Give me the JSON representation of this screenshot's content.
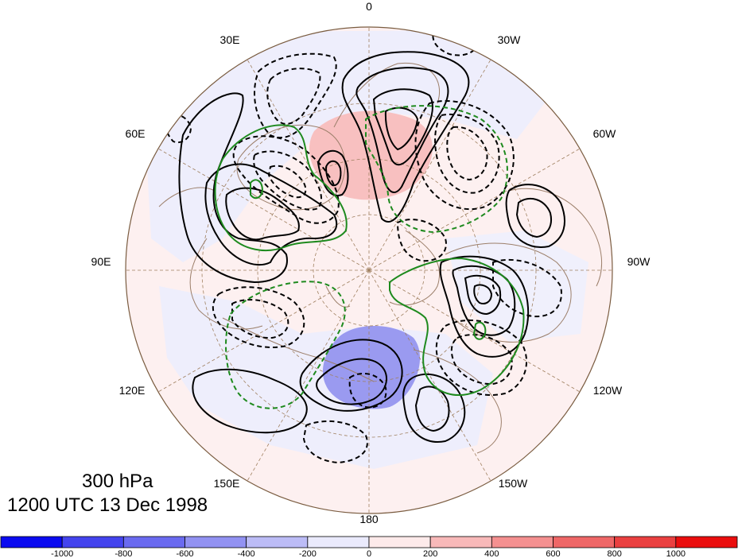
{
  "caption": {
    "level": "300 hPa",
    "time": "1200 UTC 13 Dec 1998"
  },
  "longitude_labels": [
    {
      "text": "0",
      "lon": 0
    },
    {
      "text": "30W",
      "lon": -30
    },
    {
      "text": "60W",
      "lon": -60
    },
    {
      "text": "90W",
      "lon": -90
    },
    {
      "text": "120W",
      "lon": -120
    },
    {
      "text": "150W",
      "lon": -150
    },
    {
      "text": "180",
      "lon": 180
    },
    {
      "text": "150E",
      "lon": 150
    },
    {
      "text": "120E",
      "lon": 120
    },
    {
      "text": "90E",
      "lon": 90
    },
    {
      "text": "60E",
      "lon": 60
    },
    {
      "text": "30E",
      "lon": 30
    }
  ],
  "colorbar": {
    "levels": [
      "-1000",
      "-800",
      "-600",
      "-400",
      "-200",
      "0",
      "200",
      "400",
      "600",
      "800",
      "1000"
    ],
    "colors": [
      "#0b0bf0",
      "#4444ee",
      "#6a6af0",
      "#9292f2",
      "#bcbcf6",
      "#eaeafc",
      "#fdeaea",
      "#f8b9b9",
      "#f49090",
      "#ef6767",
      "#ea4040",
      "#ea0e0e"
    ]
  },
  "colors": {
    "land_outline": "#9c7f6a",
    "graticule": "#a08060",
    "positive_contour": "#000000",
    "negative_contour": "#000000",
    "green_contour": "#1e8a1e",
    "map_border": "#7a5c40"
  }
}
